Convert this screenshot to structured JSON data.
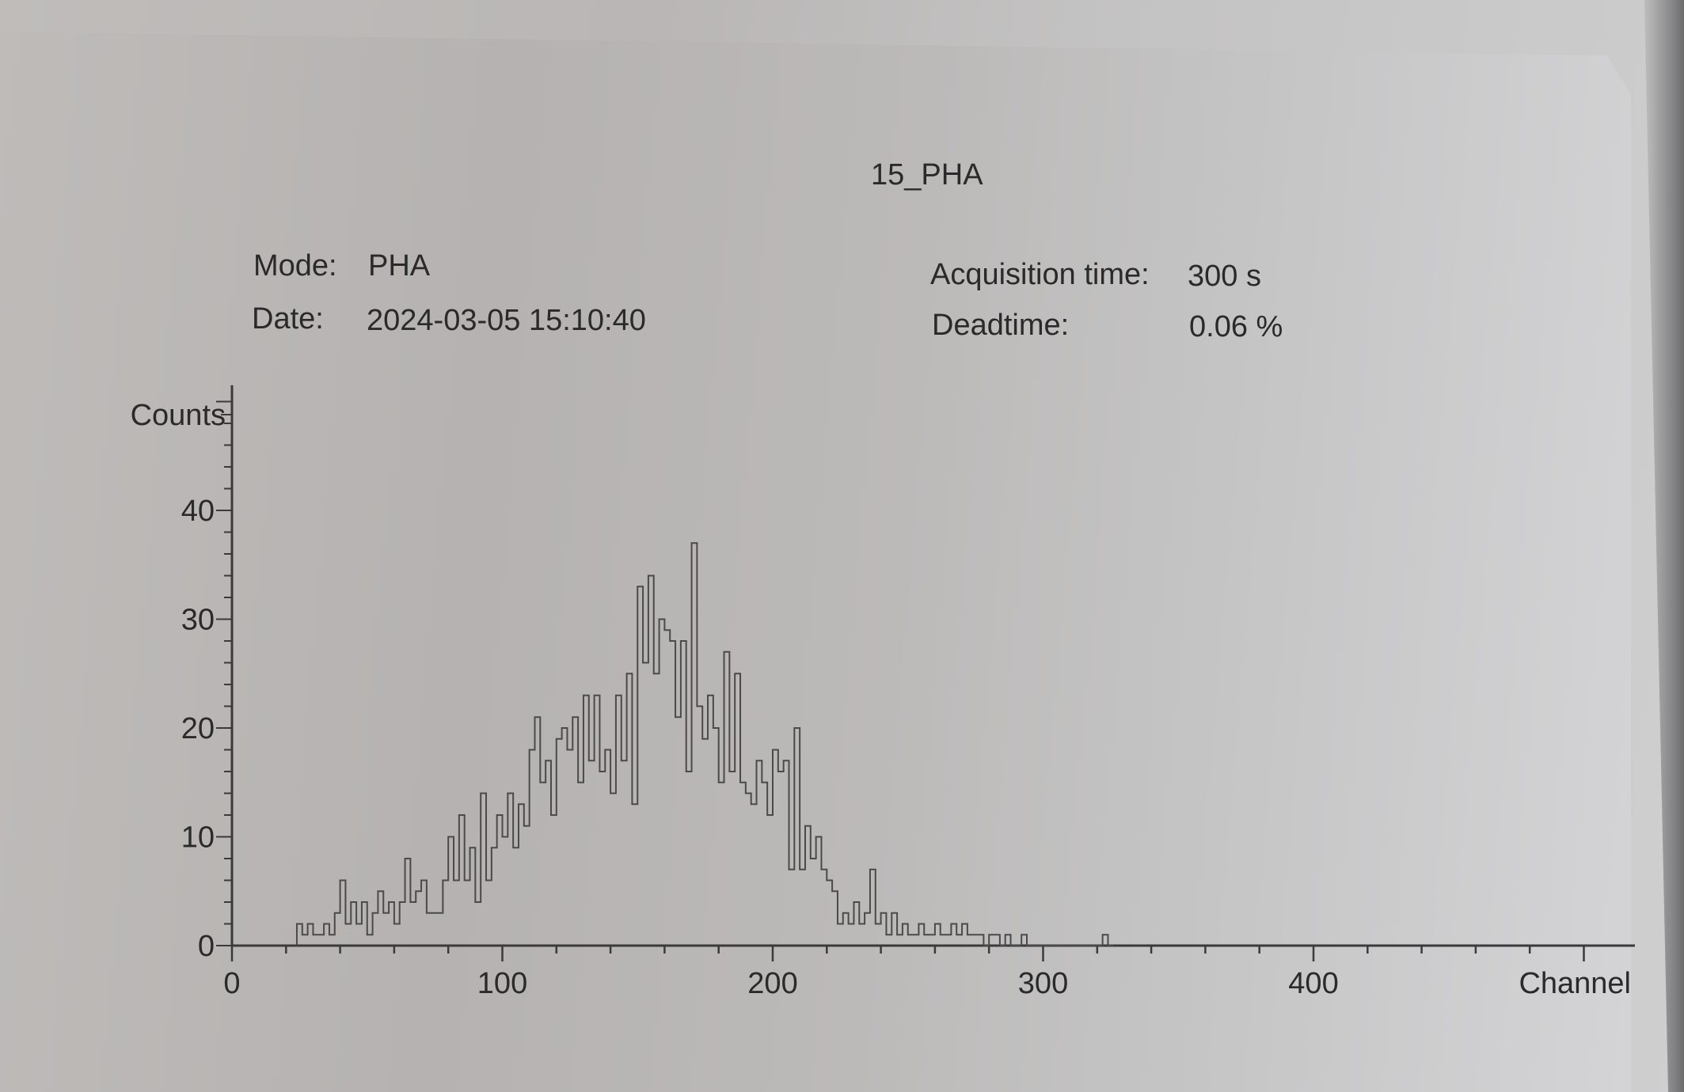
{
  "header": {
    "title": "15_PHA",
    "mode_label": "Mode:",
    "mode_value": "PHA",
    "date_label": "Date:",
    "date_value": "2024-03-05 15:10:40",
    "acq_label": "Acquisition time:",
    "acq_value": "300 s",
    "deadtime_label": "Deadtime:",
    "deadtime_value": "0.06 %"
  },
  "chart_data": {
    "type": "line",
    "title": "15_PHA",
    "xlabel": "Channel",
    "ylabel": "Counts",
    "xlim": [
      0,
      500
    ],
    "ylim": [
      0,
      52
    ],
    "x_ticks": [
      "0",
      "100",
      "200",
      "300",
      "400"
    ],
    "y_ticks": [
      "0",
      "10",
      "20",
      "30",
      "40"
    ],
    "grid": false,
    "series": [
      {
        "values": [
          [
            24,
            2
          ],
          [
            26,
            1
          ],
          [
            28,
            2
          ],
          [
            30,
            1
          ],
          [
            32,
            1
          ],
          [
            34,
            2
          ],
          [
            36,
            1
          ],
          [
            38,
            3
          ],
          [
            40,
            6
          ],
          [
            42,
            2
          ],
          [
            44,
            4
          ],
          [
            46,
            2
          ],
          [
            48,
            4
          ],
          [
            50,
            1
          ],
          [
            52,
            3
          ],
          [
            54,
            5
          ],
          [
            56,
            3
          ],
          [
            58,
            4
          ],
          [
            60,
            2
          ],
          [
            62,
            4
          ],
          [
            64,
            8
          ],
          [
            66,
            4
          ],
          [
            68,
            5
          ],
          [
            70,
            6
          ],
          [
            72,
            3
          ],
          [
            74,
            3
          ],
          [
            76,
            3
          ],
          [
            78,
            6
          ],
          [
            80,
            10
          ],
          [
            82,
            6
          ],
          [
            84,
            12
          ],
          [
            86,
            6
          ],
          [
            88,
            9
          ],
          [
            90,
            4
          ],
          [
            92,
            14
          ],
          [
            94,
            6
          ],
          [
            96,
            9
          ],
          [
            98,
            12
          ],
          [
            100,
            10
          ],
          [
            102,
            14
          ],
          [
            104,
            9
          ],
          [
            106,
            13
          ],
          [
            108,
            11
          ],
          [
            110,
            18
          ],
          [
            112,
            21
          ],
          [
            114,
            15
          ],
          [
            116,
            17
          ],
          [
            118,
            12
          ],
          [
            120,
            19
          ],
          [
            122,
            20
          ],
          [
            124,
            18
          ],
          [
            126,
            21
          ],
          [
            128,
            15
          ],
          [
            130,
            23
          ],
          [
            132,
            17
          ],
          [
            134,
            23
          ],
          [
            136,
            16
          ],
          [
            138,
            18
          ],
          [
            140,
            14
          ],
          [
            142,
            23
          ],
          [
            144,
            17
          ],
          [
            146,
            25
          ],
          [
            148,
            13
          ],
          [
            150,
            33
          ],
          [
            152,
            26
          ],
          [
            154,
            34
          ],
          [
            156,
            25
          ],
          [
            158,
            30
          ],
          [
            160,
            29
          ],
          [
            162,
            28
          ],
          [
            164,
            21
          ],
          [
            166,
            28
          ],
          [
            168,
            16
          ],
          [
            170,
            37
          ],
          [
            172,
            22
          ],
          [
            174,
            19
          ],
          [
            176,
            23
          ],
          [
            178,
            20
          ],
          [
            180,
            15
          ],
          [
            182,
            27
          ],
          [
            184,
            16
          ],
          [
            186,
            25
          ],
          [
            188,
            15
          ],
          [
            190,
            14
          ],
          [
            192,
            13
          ],
          [
            194,
            17
          ],
          [
            196,
            15
          ],
          [
            198,
            12
          ],
          [
            200,
            18
          ],
          [
            202,
            16
          ],
          [
            204,
            17
          ],
          [
            206,
            7
          ],
          [
            208,
            20
          ],
          [
            210,
            7
          ],
          [
            212,
            11
          ],
          [
            214,
            8
          ],
          [
            216,
            10
          ],
          [
            218,
            7
          ],
          [
            220,
            6
          ],
          [
            222,
            5
          ],
          [
            224,
            2
          ],
          [
            226,
            3
          ],
          [
            228,
            2
          ],
          [
            230,
            4
          ],
          [
            232,
            2
          ],
          [
            234,
            3
          ],
          [
            236,
            7
          ],
          [
            238,
            2
          ],
          [
            240,
            3
          ],
          [
            242,
            1
          ],
          [
            244,
            3
          ],
          [
            246,
            1
          ],
          [
            248,
            2
          ],
          [
            250,
            1
          ],
          [
            252,
            1
          ],
          [
            254,
            2
          ],
          [
            256,
            1
          ],
          [
            258,
            1
          ],
          [
            260,
            2
          ],
          [
            262,
            1
          ],
          [
            264,
            1
          ],
          [
            266,
            2
          ],
          [
            268,
            1
          ],
          [
            270,
            2
          ],
          [
            272,
            1
          ],
          [
            274,
            1
          ],
          [
            276,
            1
          ],
          [
            278,
            0
          ],
          [
            280,
            1
          ],
          [
            284,
            0
          ],
          [
            286,
            1
          ],
          [
            288,
            0
          ],
          [
            292,
            1
          ],
          [
            294,
            0
          ],
          [
            322,
            1
          ],
          [
            324,
            0
          ]
        ]
      }
    ]
  }
}
